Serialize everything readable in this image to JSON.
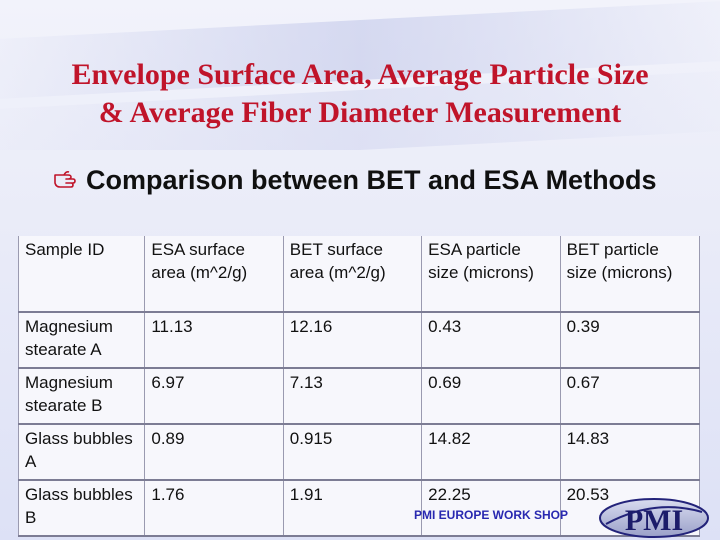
{
  "title": {
    "line1": "Envelope Surface Area, Average Particle Size",
    "line2": "& Average Fiber Diameter Measurement"
  },
  "bullet": {
    "icon": "pointing-hand-icon",
    "text": "Comparison between BET and ESA Methods"
  },
  "table": {
    "headers": [
      "Sample ID",
      "ESA surface area (m^2/g)",
      "BET surface area (m^2/g)",
      "ESA particle size (microns)",
      "BET particle size (microns)"
    ],
    "rows": [
      [
        "Magnesium stearate A",
        "11.13",
        "12.16",
        "0.43",
        "0.39"
      ],
      [
        "Magnesium stearate B",
        "6.97",
        "7.13",
        "0.69",
        "0.67"
      ],
      [
        "Glass bubbles A",
        "0.89",
        "0.915",
        "14.82",
        "14.83"
      ],
      [
        "Glass bubbles B",
        "1.76",
        "1.91",
        "22.25",
        "20.53"
      ]
    ]
  },
  "footer": {
    "text": "PMI EUROPE WORK SHOP",
    "logo_text": "PMI"
  },
  "colors": {
    "title": "#c0142a",
    "footer": "#2828b0"
  }
}
